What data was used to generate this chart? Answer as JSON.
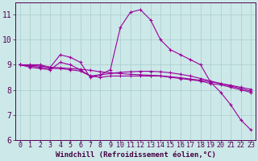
{
  "background_color": "#cce8e8",
  "grid_color": "#aacccc",
  "line_color": "#990099",
  "x_label": "Windchill (Refroidissement éolien,°C)",
  "xlim": [
    -0.5,
    23.5
  ],
  "ylim": [
    6,
    11.5
  ],
  "yticks": [
    6,
    7,
    8,
    9,
    10,
    11
  ],
  "xtick_labels": [
    "0",
    "1",
    "2",
    "3",
    "4",
    "5",
    "6",
    "7",
    "8",
    "9",
    "10",
    "11",
    "12",
    "13",
    "14",
    "15",
    "16",
    "17",
    "18",
    "19",
    "20",
    "21",
    "22",
    "23"
  ],
  "xticks": [
    0,
    1,
    2,
    3,
    4,
    5,
    6,
    7,
    8,
    9,
    10,
    11,
    12,
    13,
    14,
    15,
    16,
    17,
    18,
    19,
    20,
    21,
    22,
    23
  ],
  "series": [
    {
      "x": [
        0,
        1,
        2,
        3,
        4,
        5,
        6,
        7,
        8,
        9,
        10,
        11,
        12,
        13,
        14,
        15,
        16,
        17,
        18,
        19,
        20,
        21,
        22,
        23
      ],
      "y": [
        9.0,
        9.0,
        9.0,
        8.9,
        9.4,
        9.3,
        9.1,
        8.5,
        8.6,
        8.8,
        10.5,
        11.1,
        11.2,
        10.8,
        10.0,
        9.6,
        9.4,
        9.2,
        9.0,
        8.3,
        7.9,
        7.4,
        6.8,
        6.4
      ]
    },
    {
      "x": [
        0,
        1,
        2,
        3,
        4,
        5,
        6,
        7,
        8,
        9,
        10,
        11,
        12,
        13,
        14,
        15,
        16,
        17,
        18,
        19,
        20,
        21,
        22,
        23
      ],
      "y": [
        9.0,
        8.9,
        8.85,
        8.8,
        9.1,
        9.0,
        8.8,
        8.55,
        8.6,
        8.65,
        8.7,
        8.72,
        8.74,
        8.74,
        8.72,
        8.68,
        8.62,
        8.55,
        8.45,
        8.35,
        8.25,
        8.15,
        8.05,
        7.95
      ]
    },
    {
      "x": [
        0,
        1,
        2,
        3,
        4,
        5,
        6,
        7,
        8,
        9,
        10,
        11,
        12,
        13,
        14,
        15,
        16,
        17,
        18,
        19,
        20,
        21,
        22,
        23
      ],
      "y": [
        9.0,
        8.95,
        8.9,
        8.85,
        8.85,
        8.8,
        8.75,
        8.55,
        8.5,
        8.55,
        8.55,
        8.55,
        8.55,
        8.55,
        8.55,
        8.5,
        8.45,
        8.4,
        8.35,
        8.25,
        8.2,
        8.1,
        8.0,
        7.9
      ]
    },
    {
      "x": [
        0,
        1,
        2,
        3,
        4,
        5,
        6,
        7,
        8,
        9,
        10,
        11,
        12,
        13,
        14,
        15,
        16,
        17,
        18,
        19,
        20,
        21,
        22,
        23
      ],
      "y": [
        9.0,
        8.98,
        8.95,
        8.9,
        8.88,
        8.85,
        8.82,
        8.78,
        8.72,
        8.68,
        8.65,
        8.62,
        8.6,
        8.58,
        8.56,
        8.52,
        8.48,
        8.43,
        8.38,
        8.32,
        8.25,
        8.18,
        8.1,
        8.02
      ]
    }
  ],
  "marker": "+",
  "marker_size": 3,
  "linewidth": 0.8,
  "tick_fontsize": 6,
  "xlabel_fontsize": 6.5,
  "ytick_fontsize": 7
}
